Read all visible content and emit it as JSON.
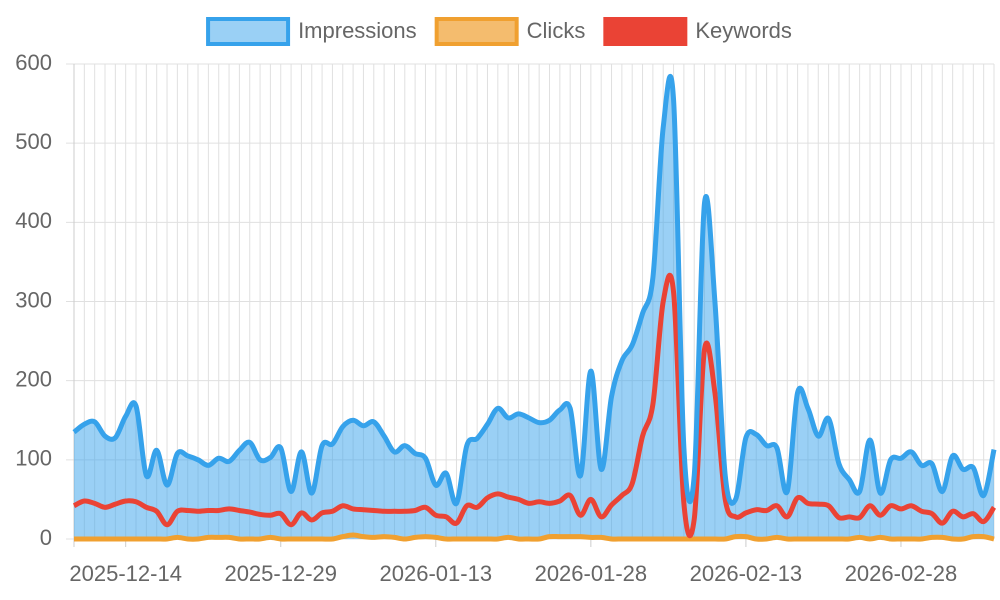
{
  "chart_data": {
    "type": "line",
    "categories": [
      null,
      null,
      null,
      null,
      null,
      "2025-12-14",
      null,
      null,
      null,
      null,
      null,
      null,
      null,
      null,
      null,
      null,
      null,
      null,
      null,
      null,
      "2025-12-29",
      null,
      null,
      null,
      null,
      null,
      null,
      null,
      null,
      null,
      null,
      null,
      null,
      null,
      null,
      "2026-01-13",
      null,
      null,
      null,
      null,
      null,
      null,
      null,
      null,
      null,
      null,
      null,
      null,
      null,
      null,
      "2026-01-28",
      null,
      null,
      null,
      null,
      null,
      null,
      null,
      null,
      null,
      null,
      null,
      null,
      null,
      null,
      "2026-02-13",
      null,
      null,
      null,
      null,
      null,
      null,
      null,
      null,
      null,
      null,
      null,
      null,
      null,
      null,
      "2026-02-28",
      null,
      null,
      null,
      null,
      null,
      null,
      null,
      null,
      null
    ],
    "series": [
      {
        "name": "Impressions",
        "color": "#36a2eb",
        "fill": "rgba(54,162,235,0.5)",
        "values": [
          135,
          145,
          148,
          130,
          128,
          155,
          168,
          80,
          112,
          68,
          108,
          105,
          100,
          93,
          102,
          98,
          112,
          122,
          100,
          103,
          115,
          60,
          110,
          58,
          118,
          120,
          142,
          150,
          143,
          148,
          130,
          110,
          118,
          108,
          102,
          68,
          83,
          45,
          118,
          127,
          145,
          165,
          153,
          158,
          153,
          147,
          150,
          163,
          165,
          80,
          212,
          88,
          180,
          225,
          245,
          285,
          330,
          520,
          555,
          115,
          80,
          425,
          300,
          80,
          50,
          128,
          132,
          118,
          115,
          60,
          185,
          165,
          130,
          152,
          95,
          75,
          60,
          125,
          58,
          100,
          102,
          110,
          93,
          95,
          60,
          105,
          88,
          90,
          55,
          113
        ]
      },
      {
        "name": "Clicks",
        "color": "#f0a030",
        "values": [
          0,
          0,
          0,
          0,
          0,
          0,
          0,
          0,
          0,
          0,
          2,
          0,
          0,
          2,
          2,
          2,
          0,
          0,
          0,
          2,
          0,
          0,
          0,
          0,
          0,
          0,
          3,
          5,
          3,
          2,
          3,
          2,
          0,
          2,
          3,
          2,
          0,
          0,
          0,
          0,
          0,
          0,
          2,
          0,
          0,
          0,
          3,
          3,
          3,
          3,
          2,
          2,
          0,
          0,
          0,
          0,
          0,
          0,
          0,
          0,
          0,
          0,
          0,
          0,
          3,
          3,
          0,
          0,
          2,
          0,
          0,
          0,
          0,
          0,
          0,
          0,
          2,
          0,
          2,
          0,
          0,
          0,
          0,
          2,
          2,
          0,
          0,
          3,
          3,
          0
        ]
      },
      {
        "name": "Keywords",
        "color": "#ea4335",
        "values": [
          42,
          48,
          45,
          40,
          44,
          48,
          47,
          40,
          35,
          18,
          35,
          36,
          35,
          36,
          36,
          38,
          36,
          34,
          31,
          30,
          32,
          18,
          33,
          24,
          33,
          35,
          42,
          38,
          37,
          36,
          35,
          35,
          35,
          36,
          40,
          30,
          28,
          20,
          42,
          40,
          52,
          57,
          53,
          50,
          45,
          47,
          45,
          48,
          55,
          30,
          50,
          28,
          43,
          55,
          70,
          130,
          170,
          300,
          312,
          45,
          25,
          240,
          185,
          50,
          28,
          33,
          37,
          36,
          42,
          28,
          52,
          45,
          44,
          42,
          27,
          28,
          27,
          42,
          30,
          42,
          38,
          42,
          35,
          32,
          20,
          35,
          28,
          32,
          22,
          40
        ]
      }
    ],
    "ylim": [
      0,
      600
    ],
    "yticks": [
      0,
      100,
      200,
      300,
      400,
      500,
      600
    ],
    "grid": true,
    "legend": "top"
  }
}
